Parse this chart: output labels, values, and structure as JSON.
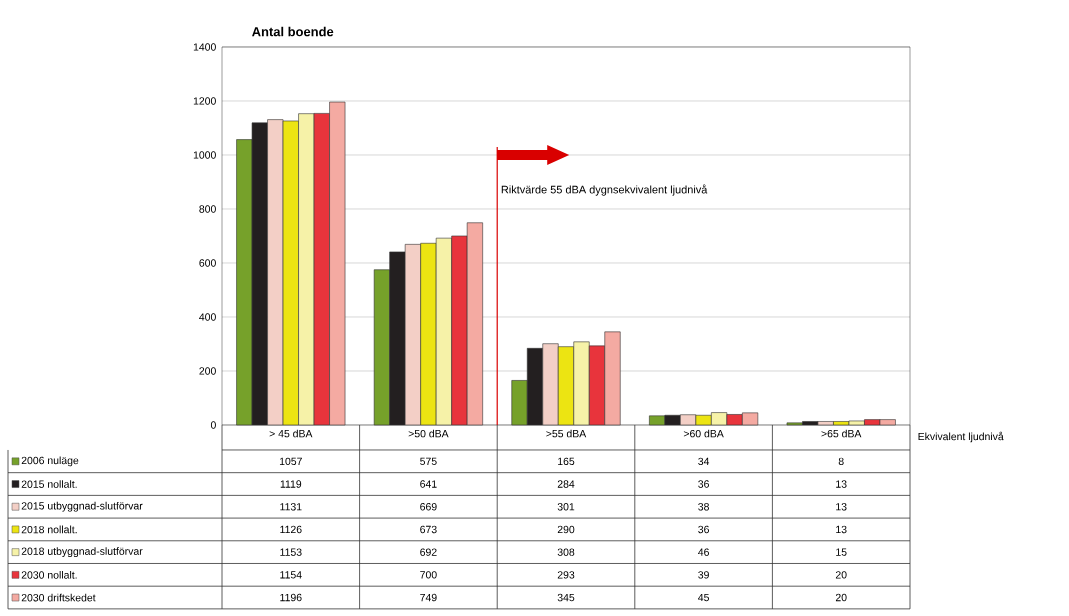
{
  "chart_data": {
    "type": "bar",
    "title": "Antal boende",
    "xlabel": "Ekvivalent ljudnivå",
    "categories": [
      "> 45 dBA",
      ">50 dBA",
      ">55 dBA",
      ">60 dBA",
      ">65 dBA"
    ],
    "series": [
      {
        "name": "2006 nuläge",
        "color": "#76a12a",
        "values": [
          1057,
          575,
          165,
          34,
          8
        ]
      },
      {
        "name": "2015 nollalt.",
        "color": "#231f20",
        "values": [
          1119,
          641,
          284,
          36,
          13
        ]
      },
      {
        "name": "2015 utbyggnad-slutförvar",
        "color": "#f3cfc6",
        "values": [
          1131,
          669,
          301,
          38,
          13
        ]
      },
      {
        "name": "2018 nollalt.",
        "color": "#ece412",
        "values": [
          1126,
          673,
          290,
          36,
          13
        ]
      },
      {
        "name": "2018 utbyggnad-slutförvar",
        "color": "#f6f2a8",
        "values": [
          1153,
          692,
          308,
          46,
          15
        ]
      },
      {
        "name": "2030 nollalt.",
        "color": "#e8343c",
        "values": [
          1154,
          700,
          293,
          39,
          20
        ]
      },
      {
        "name": "2030 driftskedet",
        "color": "#f4aaa2",
        "values": [
          1196,
          749,
          345,
          45,
          20
        ]
      }
    ],
    "ylim": [
      0,
      1400
    ],
    "yticks": [
      0,
      200,
      400,
      600,
      800,
      1000,
      1200,
      1400
    ],
    "grid": "y",
    "legend": "bottom",
    "data_labels": true,
    "annotations": [
      "Riktvärde 55 dBA dygnsekvivalent ljudnivå"
    ]
  }
}
